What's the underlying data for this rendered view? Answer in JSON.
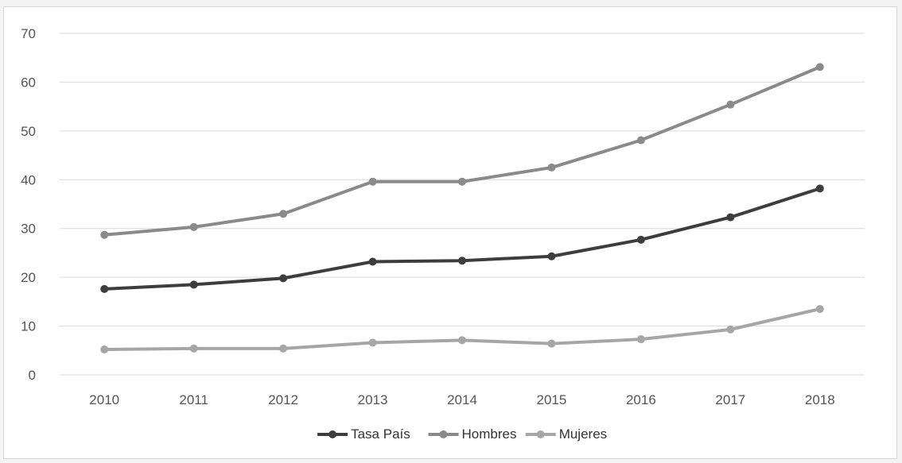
{
  "chart_data": {
    "type": "line",
    "title": "",
    "x": [
      "2010",
      "2011",
      "2012",
      "2013",
      "2014",
      "2015",
      "2016",
      "2017",
      "2018"
    ],
    "ylim": [
      0,
      70
    ],
    "yticks": [
      0,
      10,
      20,
      30,
      40,
      50,
      60,
      70
    ],
    "grid": true,
    "legend_position": "bottom",
    "series": [
      {
        "name": "Tasa País",
        "color": "#3d3d3d",
        "values": [
          17.6,
          18.5,
          19.8,
          23.2,
          23.4,
          24.3,
          27.7,
          32.3,
          38.2
        ]
      },
      {
        "name": "Hombres",
        "color": "#8a8a8a",
        "values": [
          28.7,
          30.3,
          33.0,
          39.6,
          39.6,
          42.5,
          48.1,
          55.4,
          63.1
        ]
      },
      {
        "name": "Mujeres",
        "color": "#a6a6a6",
        "values": [
          5.2,
          5.4,
          5.4,
          6.6,
          7.1,
          6.4,
          7.3,
          9.3,
          13.5
        ]
      }
    ]
  }
}
